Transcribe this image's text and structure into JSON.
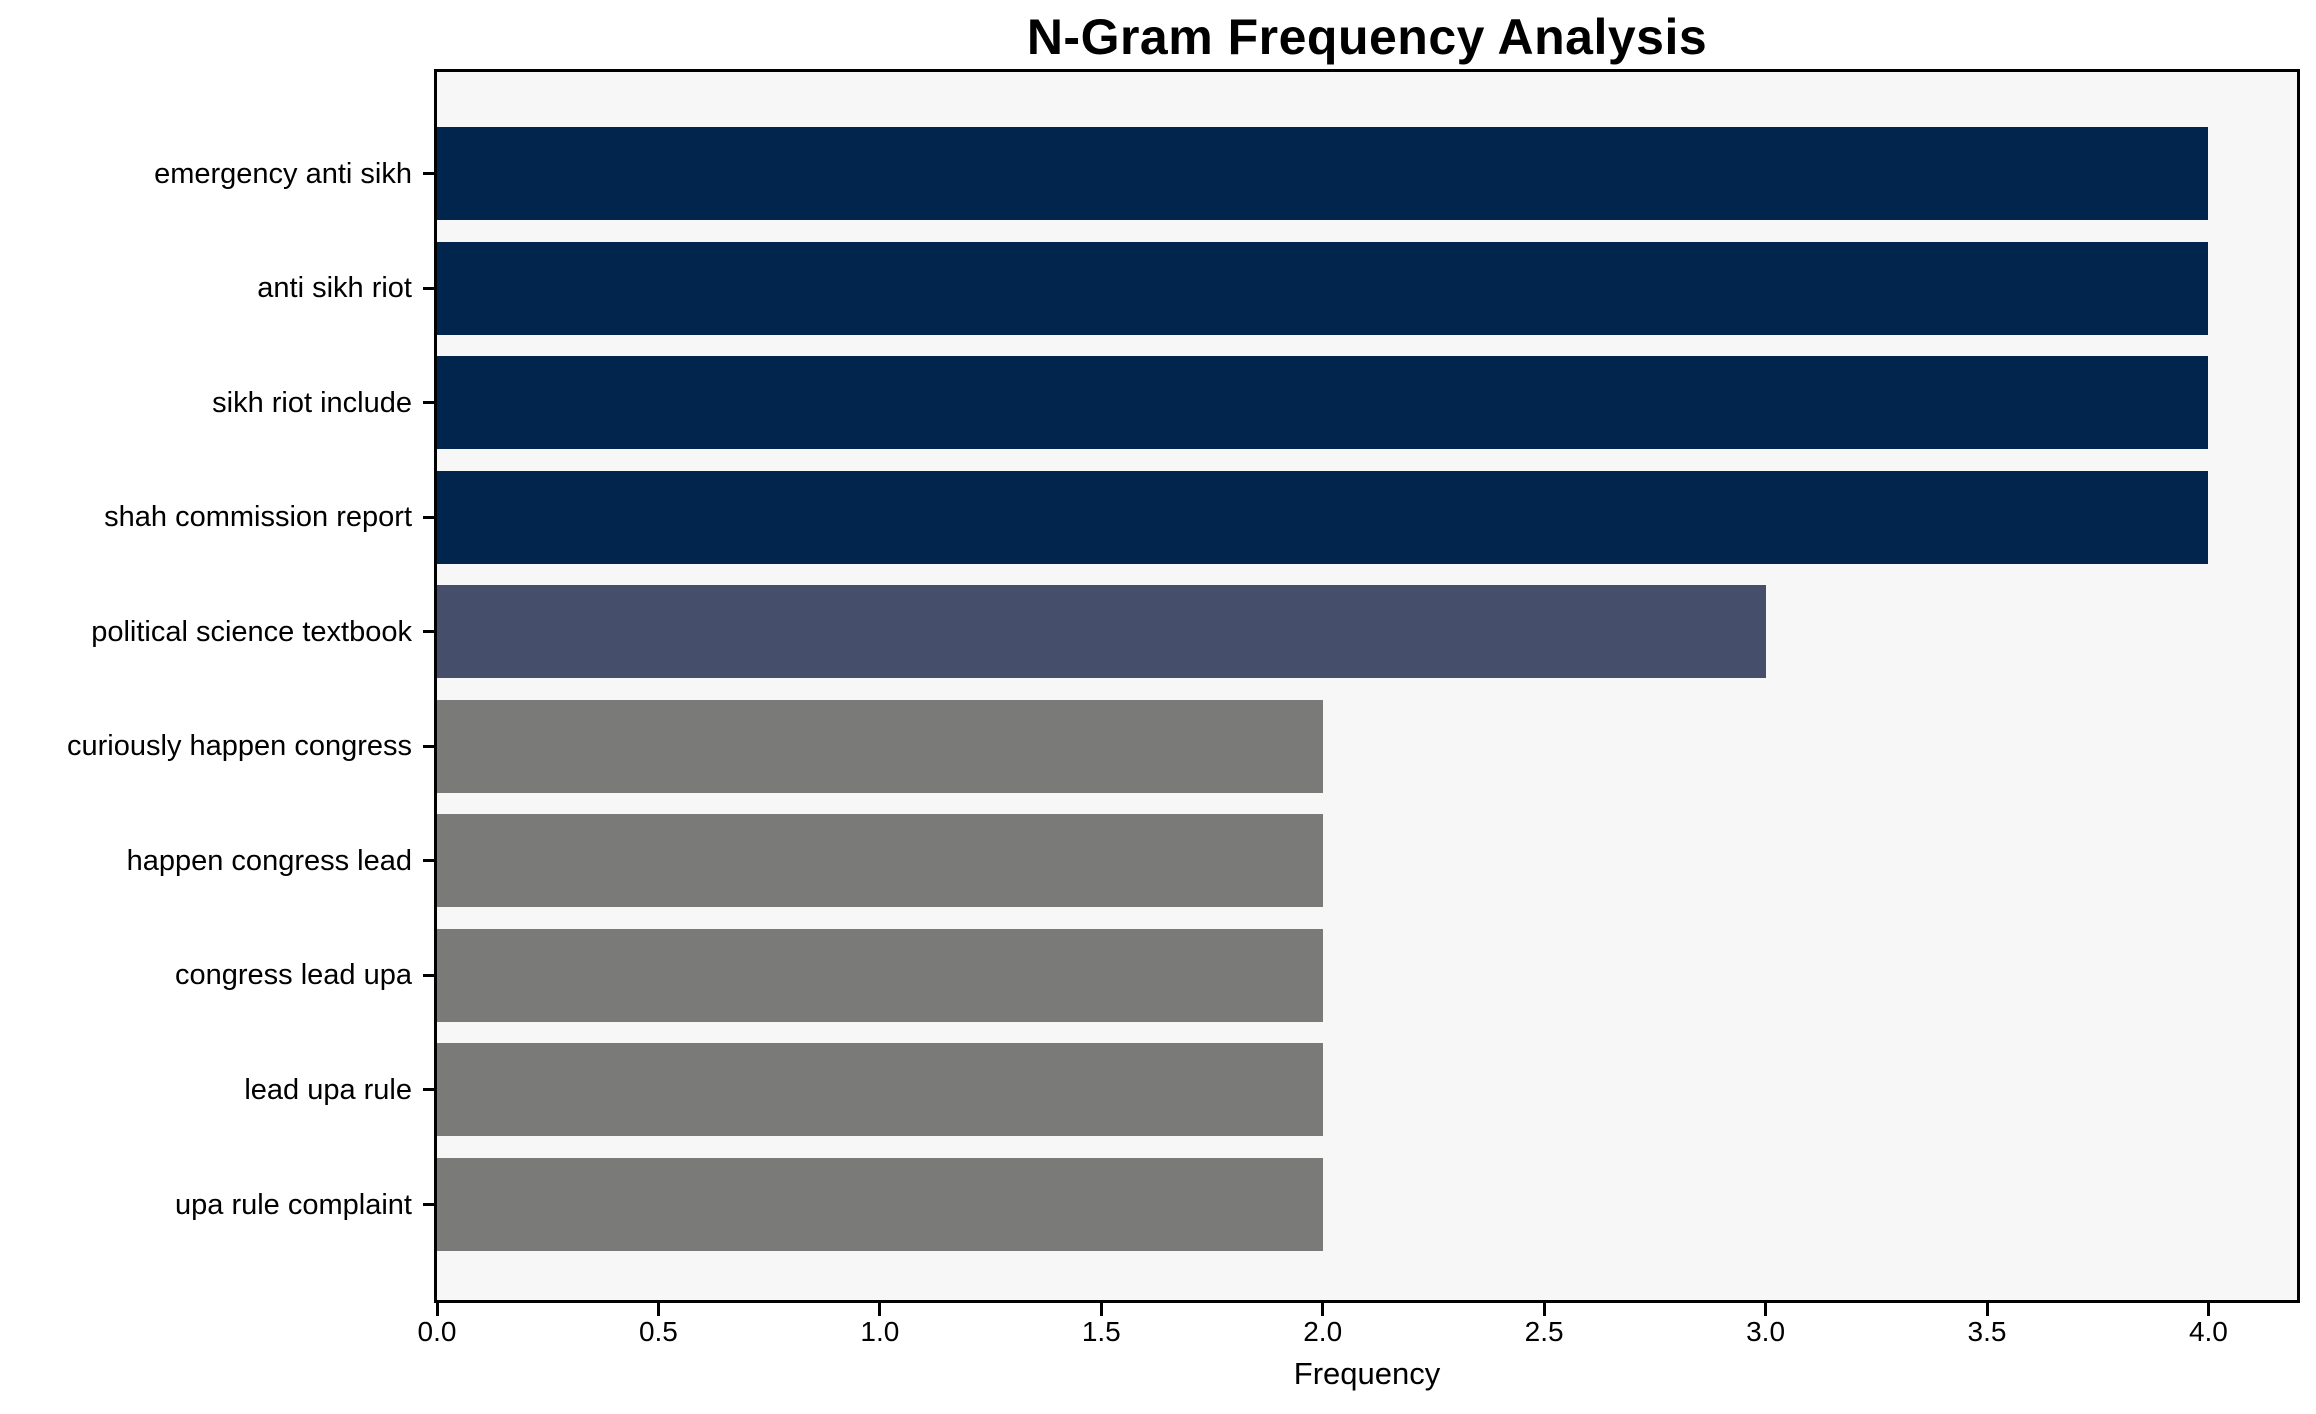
{
  "chart_data": {
    "type": "bar",
    "orientation": "horizontal",
    "title": "N-Gram Frequency Analysis",
    "xlabel": "Frequency",
    "ylabel": "",
    "categories": [
      "emergency anti sikh",
      "anti sikh riot",
      "sikh riot include",
      "shah commission report",
      "political science textbook",
      "curiously happen congress",
      "happen congress lead",
      "congress lead upa",
      "lead upa rule",
      "upa rule complaint"
    ],
    "values": [
      4,
      4,
      4,
      4,
      3,
      2,
      2,
      2,
      2,
      2
    ],
    "bar_colors": [
      "#02254d",
      "#02254d",
      "#02254d",
      "#02254d",
      "#454f6b",
      "#7a7a78",
      "#7a7a78",
      "#7a7a78",
      "#7a7a78",
      "#7a7a78"
    ],
    "x_tick_labels": [
      "0.0",
      "0.5",
      "1.0",
      "1.5",
      "2.0",
      "2.5",
      "3.0",
      "3.5",
      "4.0"
    ],
    "x_tick_values": [
      0,
      0.5,
      1,
      1.5,
      2,
      2.5,
      3,
      3.5,
      4
    ],
    "xlim": [
      0,
      4.2
    ],
    "grid": false,
    "legend": null,
    "colors": {
      "plot_background": "#f7f7f7",
      "figure_background": "#ffffff",
      "spine": "#000000",
      "text": "#000000"
    }
  }
}
